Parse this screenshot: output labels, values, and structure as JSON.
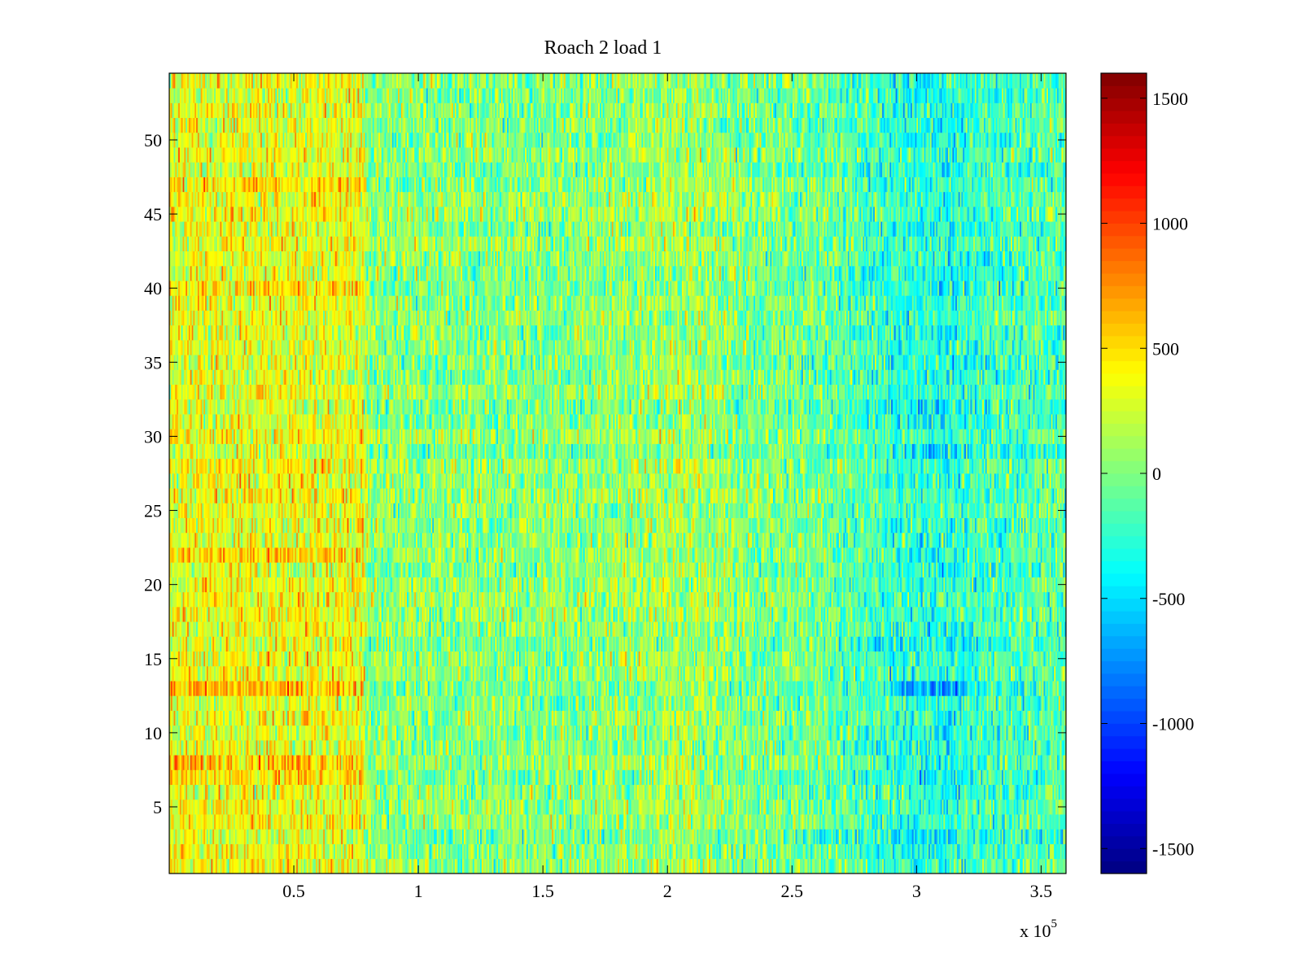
{
  "chart_data": {
    "type": "heatmap",
    "title": "Roach 2 load 1",
    "xlabel": "",
    "ylabel": "",
    "x_exponent_label": "x 10",
    "x_exponent": "5",
    "xlim": [
      0,
      3.6
    ],
    "ylim": [
      0.5,
      54.5
    ],
    "x_ticks": [
      0.5,
      1,
      1.5,
      2,
      2.5,
      3,
      3.5
    ],
    "x_tick_labels": [
      "0.5",
      "1",
      "1.5",
      "2",
      "2.5",
      "3",
      "3.5"
    ],
    "y_ticks": [
      5,
      10,
      15,
      20,
      25,
      30,
      35,
      40,
      45,
      50
    ],
    "y_tick_labels": [
      "5",
      "10",
      "15",
      "20",
      "25",
      "30",
      "35",
      "40",
      "45",
      "50"
    ],
    "rows": 54,
    "colormap": "jet",
    "clim": [
      -1600,
      1600
    ],
    "colorbar": {
      "ticks": [
        -1500,
        -1000,
        -500,
        0,
        500,
        1000,
        1500
      ],
      "tick_labels": [
        "-1500",
        "-1000",
        "-500",
        "0",
        "500",
        "1000",
        "1500"
      ]
    },
    "column_trend": {
      "x": [
        0.0,
        0.4,
        0.78,
        0.8,
        1.2,
        1.6,
        1.9,
        2.1,
        2.3,
        2.6,
        2.9,
        3.1,
        3.3,
        3.6
      ],
      "mean": [
        320,
        330,
        320,
        40,
        20,
        10,
        80,
        120,
        0,
        -50,
        -250,
        -320,
        -200,
        -120
      ]
    },
    "row_offsets": [
      {
        "row": 7,
        "x_range": [
          0.0,
          0.78
        ],
        "offset": 220
      },
      {
        "row": 8,
        "x_range": [
          0.0,
          0.78
        ],
        "offset": 260
      },
      {
        "row": 13,
        "x_range": [
          0.0,
          0.78
        ],
        "offset": 320
      },
      {
        "row": 22,
        "x_range": [
          0.0,
          0.78
        ],
        "offset": 180
      },
      {
        "row": 40,
        "x_range": [
          0.0,
          0.78
        ],
        "offset": 180
      },
      {
        "row": 47,
        "x_range": [
          0.0,
          0.78
        ],
        "offset": 140
      },
      {
        "row": 13,
        "x_range": [
          2.9,
          3.2
        ],
        "offset": -260
      },
      {
        "row": 7,
        "x_range": [
          1.98,
          2.12
        ],
        "offset": 220
      }
    ],
    "noise_std": 230,
    "grid": false,
    "legend": "none"
  }
}
